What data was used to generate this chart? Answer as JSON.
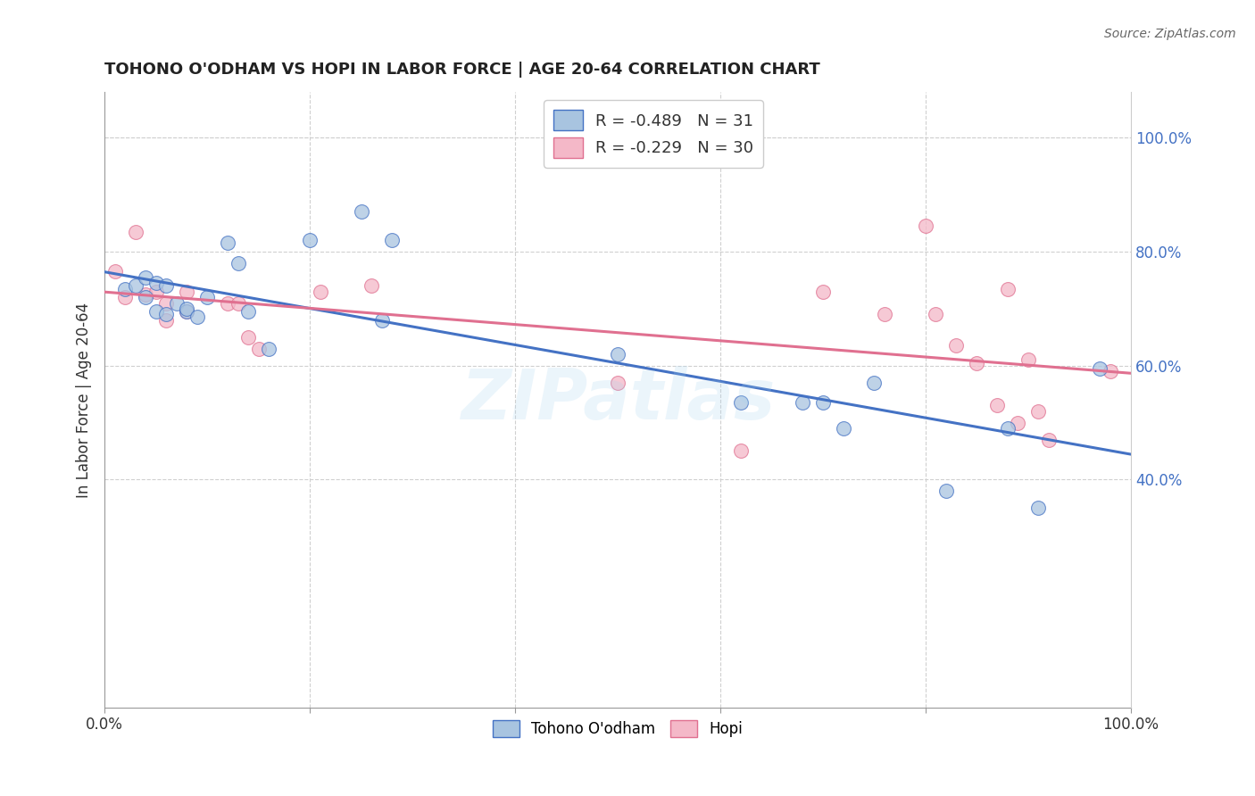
{
  "title": "TOHONO O'ODHAM VS HOPI IN LABOR FORCE | AGE 20-64 CORRELATION CHART",
  "source": "Source: ZipAtlas.com",
  "ylabel": "In Labor Force | Age 20-64",
  "watermark": "ZIPatlas",
  "legend_label1": "Tohono O'odham",
  "legend_label2": "Hopi",
  "R1": -0.489,
  "N1": 31,
  "R2": -0.229,
  "N2": 30,
  "color1": "#a8c4e0",
  "color2": "#f4b8c8",
  "line_color1": "#4472c4",
  "line_color2": "#e07090",
  "xlim": [
    0.0,
    1.0
  ],
  "ylim": [
    0.0,
    1.08
  ],
  "ytick_positions": [
    0.4,
    0.6,
    0.8,
    1.0
  ],
  "ytick_labels": [
    "40.0%",
    "60.0%",
    "80.0%",
    "100.0%"
  ],
  "tohono_x": [
    0.02,
    0.03,
    0.04,
    0.04,
    0.05,
    0.05,
    0.06,
    0.06,
    0.07,
    0.08,
    0.08,
    0.09,
    0.1,
    0.12,
    0.13,
    0.14,
    0.16,
    0.2,
    0.25,
    0.27,
    0.28,
    0.5,
    0.62,
    0.68,
    0.7,
    0.72,
    0.75,
    0.82,
    0.88,
    0.91,
    0.97
  ],
  "tohono_y": [
    0.735,
    0.74,
    0.755,
    0.72,
    0.745,
    0.695,
    0.74,
    0.69,
    0.71,
    0.695,
    0.7,
    0.685,
    0.72,
    0.815,
    0.78,
    0.695,
    0.63,
    0.82,
    0.87,
    0.68,
    0.82,
    0.62,
    0.535,
    0.535,
    0.535,
    0.49,
    0.57,
    0.38,
    0.49,
    0.35,
    0.595
  ],
  "hopi_x": [
    0.01,
    0.02,
    0.03,
    0.04,
    0.05,
    0.06,
    0.06,
    0.08,
    0.08,
    0.12,
    0.13,
    0.14,
    0.15,
    0.21,
    0.26,
    0.5,
    0.62,
    0.7,
    0.76,
    0.8,
    0.81,
    0.83,
    0.85,
    0.87,
    0.88,
    0.89,
    0.9,
    0.91,
    0.92,
    0.98
  ],
  "hopi_y": [
    0.765,
    0.72,
    0.835,
    0.725,
    0.73,
    0.71,
    0.68,
    0.73,
    0.695,
    0.71,
    0.71,
    0.65,
    0.63,
    0.73,
    0.74,
    0.57,
    0.45,
    0.73,
    0.69,
    0.845,
    0.69,
    0.635,
    0.605,
    0.53,
    0.735,
    0.5,
    0.61,
    0.52,
    0.47,
    0.59
  ],
  "marker_size": 130,
  "background_color": "#ffffff",
  "grid_color": "#d0d0d0",
  "grid_linestyle": "--"
}
